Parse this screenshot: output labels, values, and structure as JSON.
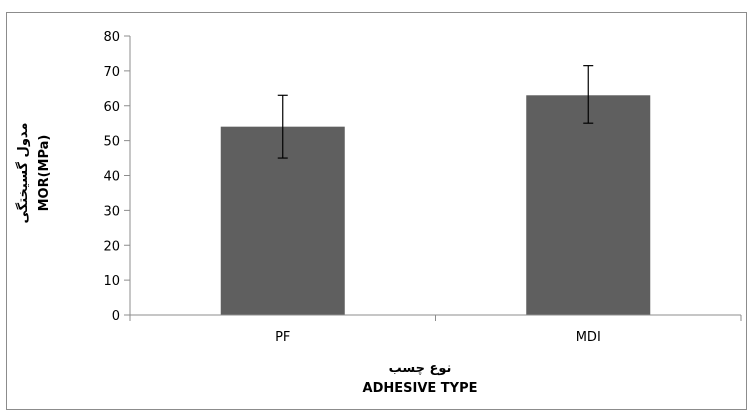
{
  "chart_data": {
    "type": "bar",
    "categories": [
      "PF",
      "MDI"
    ],
    "values": [
      54,
      63
    ],
    "error_low": [
      45,
      55
    ],
    "error_high": [
      63,
      71.5
    ],
    "ylim": [
      0,
      80
    ],
    "yticks": [
      "0",
      "10",
      "20",
      "30",
      "40",
      "50",
      "60",
      "70",
      "80"
    ],
    "ylabel_fa": "مدول گسیختگی",
    "ylabel_en": "MOR(MPa)",
    "xlabel_fa": "نوع چسب",
    "xlabel_en": "ADHESIVE TYPE",
    "bar_color": "#5f5f5f",
    "grid": false,
    "legend": "none"
  }
}
